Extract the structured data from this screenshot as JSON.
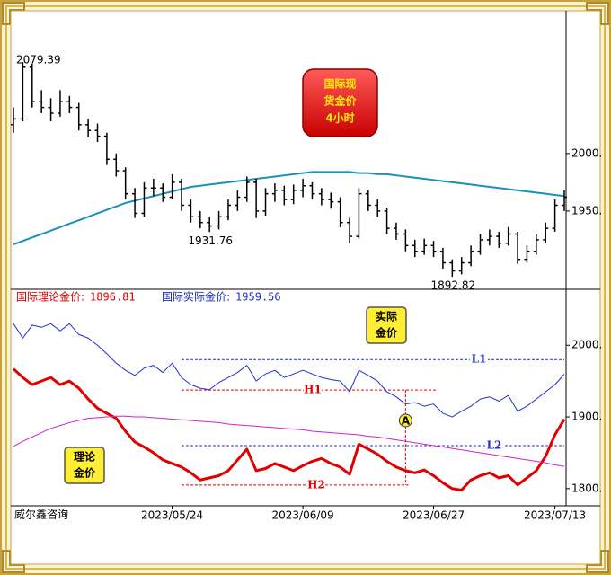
{
  "chart_data": [
    {
      "type": "candlestick",
      "title_lines": [
        "国际现",
        "货金价",
        "4小时"
      ],
      "ylim": [
        1882,
        2124
      ],
      "yticks": [
        {
          "value": 2000,
          "label": "2000."
        },
        {
          "value": 1950,
          "label": "1950."
        }
      ],
      "candles": [
        [
          2025,
          2040,
          2018,
          2030
        ],
        [
          2030,
          2079.39,
          2028,
          2075
        ],
        [
          2075,
          2078,
          2040,
          2045
        ],
        [
          2045,
          2055,
          2035,
          2040
        ],
        [
          2040,
          2048,
          2028,
          2035
        ],
        [
          2035,
          2055,
          2032,
          2045
        ],
        [
          2045,
          2050,
          2035,
          2040
        ],
        [
          2040,
          2044,
          2020,
          2025
        ],
        [
          2025,
          2030,
          2014,
          2020
        ],
        [
          2020,
          2026,
          2010,
          2015
        ],
        [
          2015,
          2018,
          1990,
          1995
        ],
        [
          1995,
          2000,
          1980,
          1985
        ],
        [
          1985,
          1988,
          1960,
          1965
        ],
        [
          1965,
          1970,
          1944,
          1948
        ],
        [
          1948,
          1975,
          1945,
          1970
        ],
        [
          1970,
          1978,
          1963,
          1970
        ],
        [
          1970,
          1974,
          1958,
          1962
        ],
        [
          1962,
          1982,
          1960,
          1975
        ],
        [
          1975,
          1978,
          1950,
          1955
        ],
        [
          1955,
          1960,
          1940,
          1945
        ],
        [
          1945,
          1950,
          1935,
          1940
        ],
        [
          1940,
          1945,
          1931.76,
          1937
        ],
        [
          1937,
          1950,
          1934,
          1945
        ],
        [
          1945,
          1960,
          1942,
          1955
        ],
        [
          1955,
          1968,
          1950,
          1962
        ],
        [
          1962,
          1980,
          1958,
          1975
        ],
        [
          1975,
          1978,
          1944,
          1950
        ],
        [
          1950,
          1970,
          1946,
          1965
        ],
        [
          1965,
          1974,
          1958,
          1968
        ],
        [
          1968,
          1972,
          1955,
          1960
        ],
        [
          1960,
          1973,
          1956,
          1968
        ],
        [
          1968,
          1978,
          1962,
          1972
        ],
        [
          1972,
          1975,
          1960,
          1965
        ],
        [
          1965,
          1970,
          1955,
          1960
        ],
        [
          1960,
          1966,
          1952,
          1958
        ],
        [
          1958,
          1962,
          1936,
          1940
        ],
        [
          1940,
          1944,
          1922,
          1928
        ],
        [
          1928,
          1970,
          1926,
          1965
        ],
        [
          1965,
          1968,
          1950,
          1955
        ],
        [
          1955,
          1960,
          1945,
          1950
        ],
        [
          1950,
          1953,
          1930,
          1935
        ],
        [
          1935,
          1940,
          1925,
          1930
        ],
        [
          1930,
          1934,
          1915,
          1920
        ],
        [
          1920,
          1925,
          1910,
          1915
        ],
        [
          1915,
          1926,
          1912,
          1920
        ],
        [
          1920,
          1924,
          1910,
          1915
        ],
        [
          1915,
          1918,
          1900,
          1905
        ],
        [
          1905,
          1908,
          1892.82,
          1898
        ],
        [
          1898,
          1910,
          1895,
          1905
        ],
        [
          1905,
          1920,
          1902,
          1915
        ],
        [
          1915,
          1930,
          1912,
          1925
        ],
        [
          1925,
          1934,
          1920,
          1928
        ],
        [
          1928,
          1932,
          1918,
          1922
        ],
        [
          1922,
          1936,
          1920,
          1930
        ],
        [
          1930,
          1932,
          1904,
          1908
        ],
        [
          1908,
          1920,
          1905,
          1915
        ],
        [
          1915,
          1930,
          1912,
          1925
        ],
        [
          1925,
          1940,
          1922,
          1935
        ],
        [
          1935,
          1960,
          1932,
          1955
        ],
        [
          1955,
          1968,
          1950,
          1962
        ]
      ],
      "candle_color": "#000000",
      "ma": {
        "color": "#1a8fc0",
        "values": [
          1921,
          1924,
          1927,
          1930,
          1933,
          1936,
          1939,
          1942,
          1945,
          1948,
          1951,
          1954,
          1957,
          1959,
          1961,
          1963,
          1965,
          1967,
          1969,
          1971,
          1972,
          1973,
          1974,
          1975,
          1976,
          1977,
          1978,
          1979,
          1980,
          1981,
          1982,
          1983,
          1984,
          1984,
          1984,
          1984,
          1984,
          1983,
          1983,
          1982,
          1982,
          1981,
          1980,
          1979,
          1978,
          1977,
          1976,
          1975,
          1974,
          1973,
          1972,
          1971,
          1970,
          1969,
          1968,
          1967,
          1966,
          1965,
          1964,
          1963
        ]
      }
    },
    {
      "type": "line",
      "ylim": [
        1776,
        2078
      ],
      "yticks": [
        {
          "value": 2000,
          "label": "2000."
        },
        {
          "value": 1900,
          "label": "1900."
        },
        {
          "value": 1800,
          "label": "1800."
        }
      ],
      "xticks": [
        {
          "value": 17,
          "label": "2023/05/24"
        },
        {
          "value": 31,
          "label": "2023/06/09"
        },
        {
          "value": 45,
          "label": "2023/06/27"
        },
        {
          "value": 58,
          "label": "2023/07/13"
        }
      ],
      "series": [
        {
          "name": "国际理论金价:",
          "color": "#e00000",
          "width": 3,
          "values": [
            1967,
            1955,
            1945,
            1950,
            1955,
            1945,
            1950,
            1940,
            1925,
            1912,
            1905,
            1898,
            1880,
            1865,
            1858,
            1850,
            1840,
            1835,
            1830,
            1822,
            1812,
            1815,
            1818,
            1825,
            1840,
            1855,
            1825,
            1828,
            1835,
            1830,
            1825,
            1832,
            1838,
            1842,
            1835,
            1830,
            1820,
            1862,
            1855,
            1848,
            1838,
            1830,
            1825,
            1822,
            1826,
            1818,
            1808,
            1800,
            1798,
            1812,
            1818,
            1822,
            1815,
            1818,
            1805,
            1815,
            1825,
            1845,
            1875,
            1896.81
          ]
        },
        {
          "name": "国际实际金价:",
          "color": "#1f2fcf",
          "width": 1,
          "values": [
            2030,
            2010,
            2028,
            2025,
            2030,
            2020,
            2030,
            2015,
            2010,
            2000,
            1988,
            1975,
            1965,
            1958,
            1968,
            1972,
            1962,
            1975,
            1955,
            1945,
            1940,
            1938,
            1948,
            1955,
            1962,
            1972,
            1950,
            1960,
            1965,
            1955,
            1960,
            1965,
            1960,
            1955,
            1952,
            1950,
            1935,
            1965,
            1958,
            1950,
            1935,
            1928,
            1918,
            1920,
            1915,
            1918,
            1905,
            1900,
            1908,
            1915,
            1925,
            1928,
            1922,
            1930,
            1908,
            1915,
            1925,
            1935,
            1945,
            1959.56
          ]
        },
        {
          "color": "#d020d0",
          "width": 1,
          "values": [
            1859,
            1866,
            1872,
            1878,
            1884,
            1888,
            1892,
            1895,
            1898,
            1899,
            1900,
            1901,
            1901,
            1900,
            1900,
            1899,
            1898,
            1897,
            1896,
            1895,
            1894,
            1893,
            1892,
            1890,
            1889,
            1888,
            1887,
            1886,
            1885,
            1884,
            1883,
            1882,
            1880,
            1879,
            1878,
            1877,
            1876,
            1875,
            1873,
            1872,
            1870,
            1868,
            1866,
            1864,
            1862,
            1860,
            1858,
            1856,
            1854,
            1852,
            1850,
            1848,
            1846,
            1844,
            1842,
            1840,
            1838,
            1836,
            1833,
            1831
          ]
        }
      ],
      "ref_lines": [
        {
          "label": "L1",
          "value": 1980,
          "color": "#1f2fcf"
        },
        {
          "label": "H1",
          "value": 1937.5,
          "color": "#e00000"
        },
        {
          "label": "L2",
          "value": 1860,
          "color": "#1f2fcf"
        },
        {
          "label": "H2",
          "value": 1805,
          "color": "#e00000"
        }
      ],
      "marker": {
        "label": "A"
      },
      "badges": [
        {
          "lines": [
            "实际",
            "金价"
          ]
        },
        {
          "lines": [
            "理论",
            "金价"
          ]
        }
      ],
      "source": "威尔鑫咨询"
    }
  ]
}
